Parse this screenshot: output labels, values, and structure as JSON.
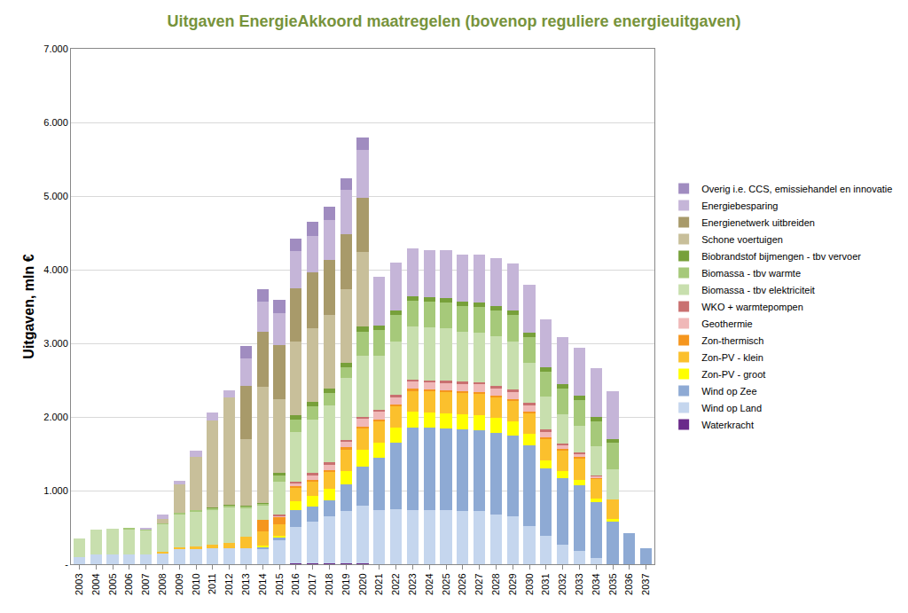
{
  "chart_data": {
    "type": "bar",
    "title": "Uitgaven EnergieAkkoord maatregelen (bovenop reguliere energieuitgaven)",
    "y_label": "Uitgaven, mln €",
    "stacked": true,
    "grid": true,
    "legend": "right",
    "categories": [
      "2003",
      "2004",
      "2005",
      "2006",
      "2007",
      "2008",
      "2009",
      "2010",
      "2011",
      "2012",
      "2013",
      "2014",
      "2015",
      "2016",
      "2017",
      "2018",
      "2019",
      "2020",
      "2021",
      "2022",
      "2023",
      "2024",
      "2025",
      "2026",
      "2027",
      "2028",
      "2029",
      "2030",
      "2031",
      "2032",
      "2033",
      "2034",
      "2035",
      "2036",
      "2037"
    ],
    "ylim": [
      0,
      7000
    ],
    "yticks": [
      {
        "value": 0,
        "label": "-"
      },
      {
        "value": 1000,
        "label": "1.000"
      },
      {
        "value": 2000,
        "label": "2.000"
      },
      {
        "value": 3000,
        "label": "3.000"
      },
      {
        "value": 4000,
        "label": "4.000"
      },
      {
        "value": 5000,
        "label": "5.000"
      },
      {
        "value": 6000,
        "label": "6.000"
      },
      {
        "value": 7000,
        "label": "7.000"
      }
    ],
    "series": [
      {
        "name": "Waterkracht",
        "color": "#6a2a8a",
        "values": [
          0,
          0,
          0,
          0,
          0,
          0,
          0,
          0,
          0,
          0,
          0,
          0,
          0,
          10,
          10,
          10,
          10,
          10,
          0,
          0,
          0,
          0,
          0,
          0,
          0,
          0,
          0,
          0,
          0,
          0,
          0,
          0,
          0,
          0,
          0
        ]
      },
      {
        "name": "Wind op Land",
        "color": "#c5d6ee",
        "values": [
          100,
          130,
          130,
          130,
          130,
          150,
          200,
          210,
          220,
          220,
          220,
          200,
          330,
          500,
          570,
          640,
          710,
          790,
          740,
          750,
          740,
          740,
          730,
          720,
          720,
          680,
          650,
          520,
          380,
          260,
          180,
          90,
          0,
          0,
          0
        ]
      },
      {
        "name": "Wind op Zee",
        "color": "#8eaad4",
        "values": [
          0,
          0,
          0,
          0,
          0,
          0,
          0,
          0,
          0,
          0,
          0,
          30,
          30,
          230,
          200,
          220,
          370,
          520,
          700,
          900,
          1110,
          1110,
          1110,
          1110,
          1100,
          1100,
          1100,
          1090,
          920,
          910,
          890,
          750,
          590,
          420,
          220
        ]
      },
      {
        "name": "Zon-PV - groot",
        "color": "#ffff00",
        "values": [
          0,
          0,
          0,
          0,
          0,
          0,
          0,
          0,
          0,
          0,
          0,
          20,
          30,
          120,
          150,
          160,
          180,
          230,
          210,
          200,
          220,
          210,
          210,
          210,
          210,
          210,
          190,
          160,
          110,
          90,
          80,
          50,
          20,
          0,
          0
        ]
      },
      {
        "name": "Zon-PV - klein",
        "color": "#fbc02d",
        "values": [
          0,
          0,
          0,
          0,
          0,
          20,
          30,
          30,
          40,
          70,
          150,
          200,
          150,
          180,
          200,
          230,
          290,
          290,
          290,
          300,
          290,
          290,
          290,
          290,
          290,
          280,
          280,
          280,
          290,
          290,
          290,
          270,
          270,
          0,
          0
        ]
      },
      {
        "name": "Zon-thermisch",
        "color": "#f5961e",
        "values": [
          0,
          0,
          0,
          0,
          0,
          0,
          0,
          0,
          0,
          0,
          0,
          150,
          100,
          20,
          20,
          20,
          30,
          30,
          20,
          20,
          20,
          20,
          20,
          20,
          20,
          20,
          20,
          20,
          20,
          20,
          20,
          20,
          0,
          0,
          0
        ]
      },
      {
        "name": "Geothermie",
        "color": "#f0b8b8",
        "values": [
          0,
          0,
          0,
          0,
          0,
          0,
          0,
          0,
          0,
          0,
          0,
          0,
          20,
          40,
          60,
          70,
          70,
          100,
          110,
          100,
          100,
          100,
          100,
          100,
          100,
          100,
          100,
          90,
          80,
          50,
          40,
          20,
          0,
          0,
          0
        ]
      },
      {
        "name": "WKO + warmtepompen",
        "color": "#c97070",
        "values": [
          0,
          0,
          0,
          0,
          0,
          0,
          0,
          0,
          0,
          0,
          0,
          0,
          10,
          20,
          30,
          30,
          30,
          30,
          30,
          30,
          30,
          30,
          30,
          30,
          30,
          30,
          30,
          30,
          30,
          20,
          20,
          10,
          0,
          0,
          0
        ]
      },
      {
        "name": "Biomassa - tbv elektriciteit",
        "color": "#c8dfae",
        "values": [
          250,
          340,
          350,
          340,
          330,
          380,
          450,
          480,
          480,
          480,
          400,
          200,
          450,
          680,
          720,
          780,
          840,
          830,
          730,
          720,
          720,
          720,
          710,
          680,
          680,
          680,
          660,
          550,
          450,
          400,
          360,
          390,
          410,
          0,
          0
        ]
      },
      {
        "name": "Biomassa - tbv warmte",
        "color": "#a6c97a",
        "values": [
          0,
          0,
          0,
          20,
          20,
          10,
          20,
          20,
          20,
          30,
          20,
          20,
          80,
          160,
          190,
          160,
          140,
          330,
          350,
          360,
          350,
          350,
          350,
          350,
          350,
          350,
          350,
          350,
          340,
          340,
          350,
          340,
          360,
          0,
          0
        ]
      },
      {
        "name": "Biobrandstof bijmengen - tbv vervoer",
        "color": "#77a03a",
        "values": [
          0,
          0,
          0,
          0,
          0,
          0,
          0,
          0,
          10,
          10,
          10,
          10,
          40,
          60,
          60,
          60,
          60,
          70,
          60,
          60,
          60,
          60,
          60,
          60,
          60,
          60,
          60,
          60,
          60,
          60,
          60,
          60,
          50,
          0,
          0
        ]
      },
      {
        "name": "Schone voertuigen",
        "color": "#c8bf9a",
        "values": [
          0,
          0,
          0,
          0,
          0,
          50,
          380,
          720,
          1180,
          1450,
          900,
          1580,
          1000,
          1000,
          1000,
          1000,
          1010,
          1010,
          0,
          0,
          0,
          0,
          0,
          0,
          0,
          0,
          0,
          0,
          0,
          0,
          0,
          0,
          0,
          0,
          0
        ]
      },
      {
        "name": "Energienetwerk uitbreiden",
        "color": "#a89a6a",
        "values": [
          0,
          0,
          0,
          0,
          0,
          0,
          0,
          0,
          0,
          0,
          720,
          750,
          730,
          730,
          750,
          750,
          740,
          740,
          0,
          0,
          0,
          0,
          0,
          0,
          0,
          0,
          0,
          0,
          0,
          0,
          0,
          0,
          0,
          0,
          0
        ]
      },
      {
        "name": "Energiebesparing",
        "color": "#c5b5d8",
        "values": [
          0,
          0,
          0,
          0,
          20,
          60,
          50,
          80,
          110,
          100,
          370,
          410,
          440,
          500,
          500,
          550,
          600,
          650,
          660,
          660,
          650,
          630,
          650,
          640,
          650,
          650,
          650,
          650,
          650,
          640,
          650,
          660,
          650,
          0,
          0
        ]
      },
      {
        "name": "Overig i.e. CCS, emissiehandel en innovatie",
        "color": "#a08cc0",
        "values": [
          0,
          0,
          0,
          0,
          0,
          0,
          0,
          0,
          0,
          0,
          170,
          170,
          180,
          170,
          190,
          170,
          160,
          160,
          0,
          0,
          0,
          0,
          0,
          0,
          0,
          0,
          0,
          0,
          0,
          0,
          0,
          0,
          0,
          0,
          0
        ]
      }
    ]
  }
}
